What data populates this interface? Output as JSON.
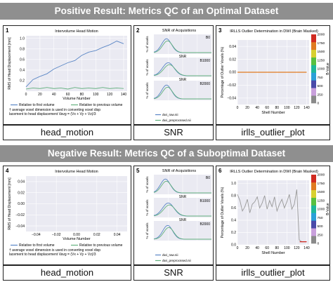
{
  "banners": {
    "positive": "Positive Result: Metrics QC of an Optimal Dataset",
    "negative": "Negative Result: Metrics QC of a Suboptimal Dataset"
  },
  "captions": {
    "p1": "head_motion",
    "p2": "SNR",
    "p3": "irlls_outlier_plot",
    "p4": "head_motion",
    "p5": "SNR",
    "p6": "irlls_outlier_plot"
  },
  "colors": {
    "relative_first": "#5a86c5",
    "relative_previous": "#62b07e",
    "snr_raw": "#5a86c5",
    "snr_preproc": "#62b07e",
    "outlier_line": "#999999",
    "banner": "#8f8f8f"
  },
  "chart_data": [
    {
      "panel": "1",
      "type": "line",
      "title": "Intervolume Head Motion",
      "xlabel": "Volume Number",
      "ylabel": "RMS of Head Displacement [mm]",
      "xlim": [
        0,
        145
      ],
      "ylim": [
        0,
        1.05
      ],
      "xticks": [
        "0",
        "20",
        "40",
        "60",
        "80",
        "100",
        "120",
        "140"
      ],
      "yticks": [
        "0.2",
        "0.4",
        "0.6",
        "0.8",
        "1.0"
      ],
      "grid": true,
      "legend_placement": "bottom",
      "series": [
        {
          "name": "Relative to first volume",
          "x": [
            0,
            10,
            20,
            30,
            40,
            50,
            60,
            70,
            80,
            90,
            100,
            110,
            120,
            130,
            140
          ],
          "y": [
            0.08,
            0.22,
            0.28,
            0.33,
            0.42,
            0.48,
            0.54,
            0.58,
            0.68,
            0.74,
            0.77,
            0.83,
            0.88,
            0.95,
            0.9
          ]
        },
        {
          "name": "Relative to previous volume",
          "x": [
            0,
            10,
            20,
            30,
            40,
            50,
            60,
            70,
            80,
            90,
            100,
            110,
            120,
            130,
            140
          ],
          "y": [
            0.04,
            0.06,
            0.05,
            0.07,
            0.05,
            0.06,
            0.04,
            0.07,
            0.05,
            0.06,
            0.05,
            0.07,
            0.05,
            0.06,
            0.05
          ]
        }
      ],
      "footnote": "† average voxel dimension is used in converting voxel displacement to head displacement Vavg = (Vx + Vy + Vz)/3"
    },
    {
      "panel": "2",
      "type": "line",
      "title": "SNR of Acquisitions",
      "xlabel": "SNR",
      "subplots": [
        {
          "label": "B0",
          "ylabel": "% of voxels"
        },
        {
          "label": "B1000",
          "ylabel": "% of voxels"
        },
        {
          "label": "B2000",
          "ylabel": "% of voxels"
        }
      ],
      "legend": [
        "dwi_raw.nii",
        "dwi_preprocssed.nii"
      ],
      "legend_placement": "bottom"
    },
    {
      "panel": "3",
      "type": "line",
      "title": "IRLLS Outlier Determination in DWI (Brain Masked)",
      "xlabel": "Shell Number",
      "ylabel": "Percentage of Outlier Voxels (%)",
      "xlim": [
        0,
        145
      ],
      "ylim": [
        -0.05,
        0.05
      ],
      "xticks": [
        "0",
        "20",
        "40",
        "60",
        "80",
        "100",
        "120",
        "140"
      ],
      "yticks": [
        "−0.04",
        "−0.02",
        "0.00",
        "0.02",
        "0.04"
      ],
      "colorbar": {
        "label": "B-Value",
        "ticks": [
          "0",
          "250",
          "500",
          "750",
          "1000",
          "1250",
          "1500",
          "1750",
          "2000"
        ]
      },
      "series": [
        {
          "x": [
            0,
            140
          ],
          "y": [
            0,
            0
          ]
        }
      ]
    },
    {
      "panel": "4",
      "type": "line",
      "title": "Intervolume Head Motion",
      "xlabel": "Volume Number",
      "ylabel": "RMS of Head Displacement [mm]",
      "xlim": [
        -0.05,
        0.05
      ],
      "ylim": [
        -0.05,
        0.05
      ],
      "xticks": [
        "−0.04",
        "−0.02",
        "0.00",
        "0.02",
        "0.04"
      ],
      "yticks": [
        "−0.04",
        "−0.02",
        "0.00",
        "0.02",
        "0.04"
      ],
      "grid": true,
      "legend_placement": "bottom",
      "series": [
        {
          "name": "Relative to first volume",
          "x": [],
          "y": []
        },
        {
          "name": "Relative to previous volume",
          "x": [],
          "y": []
        }
      ],
      "footnote": "† average voxel dimension is used in converting voxel displacement to head displacement Vavg = (Vx + Vy + Vz)/3"
    },
    {
      "panel": "5",
      "type": "line",
      "title": "SNR of Acquisitions",
      "xlabel": "SNR",
      "subplots": [
        {
          "label": "B0",
          "ylabel": "% of voxels"
        },
        {
          "label": "B1000",
          "ylabel": "% of voxels"
        },
        {
          "label": "B2000",
          "ylabel": "% of voxels"
        }
      ],
      "legend": [
        "dwi_raw.nii",
        "dwi_preprocssed.nii"
      ],
      "legend_placement": "bottom"
    },
    {
      "panel": "6",
      "type": "line",
      "title": "IRLLS Outlier Determination in DWI (Brain Masked)",
      "xlabel": "Shell Number",
      "ylabel": "Percentage of Outlier Voxels (%)",
      "xlim": [
        0,
        145
      ],
      "ylim": [
        0,
        1.05
      ],
      "xticks": [
        "0",
        "20",
        "40",
        "60",
        "80",
        "100",
        "120",
        "140"
      ],
      "yticks": [
        "0.0",
        "0.2",
        "0.4",
        "0.6",
        "0.8",
        "1.0"
      ],
      "colorbar": {
        "label": "B-Value",
        "ticks": [
          "0",
          "250",
          "500",
          "750",
          "1000",
          "1250",
          "1500",
          "1750",
          "2000"
        ]
      },
      "series": [
        {
          "x": [
            0,
            5,
            10,
            15,
            20,
            25,
            30,
            35,
            40,
            45,
            50,
            55,
            60,
            65,
            70,
            75,
            80,
            85,
            90,
            95,
            100,
            105,
            110,
            115,
            120,
            125,
            130,
            135,
            140
          ],
          "y": [
            0.82,
            0.72,
            0.55,
            0.62,
            0.74,
            0.52,
            0.66,
            0.7,
            0.78,
            0.6,
            0.68,
            0.8,
            0.58,
            0.72,
            0.62,
            0.78,
            0.55,
            0.66,
            0.74,
            0.6,
            0.7,
            0.82,
            0.58,
            0.66,
            0.9,
            0.08,
            0.05,
            0.05,
            0.05
          ]
        }
      ]
    }
  ]
}
